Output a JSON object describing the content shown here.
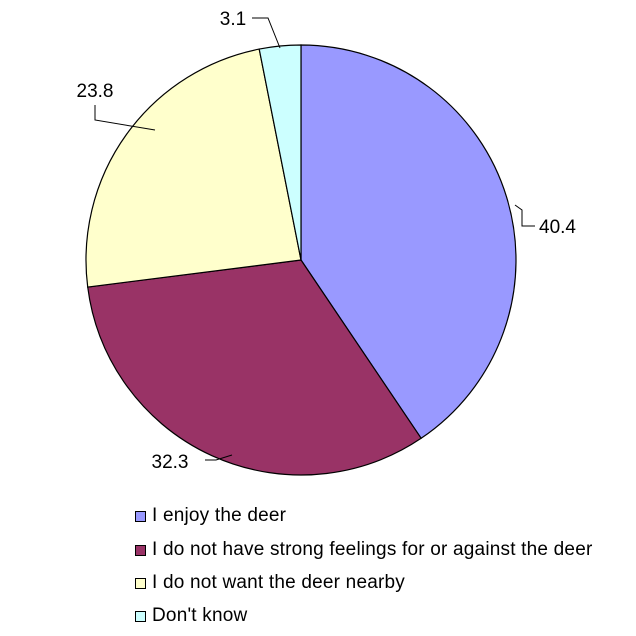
{
  "chart_data": {
    "type": "pie",
    "categories": [
      "I enjoy the deer",
      "I do not have strong feelings for or against the deer",
      "I do not want the deer nearby",
      "Don't know"
    ],
    "values": [
      40.4,
      32.3,
      23.8,
      3.1
    ],
    "data_labels": [
      "40.4",
      "32.3",
      "23.8",
      "3.1"
    ],
    "colors": [
      "#9999ff",
      "#993366",
      "#ffffcc",
      "#ccffff"
    ],
    "start": "12 o'clock, clockwise",
    "legend_position": "bottom-left",
    "title": ""
  }
}
